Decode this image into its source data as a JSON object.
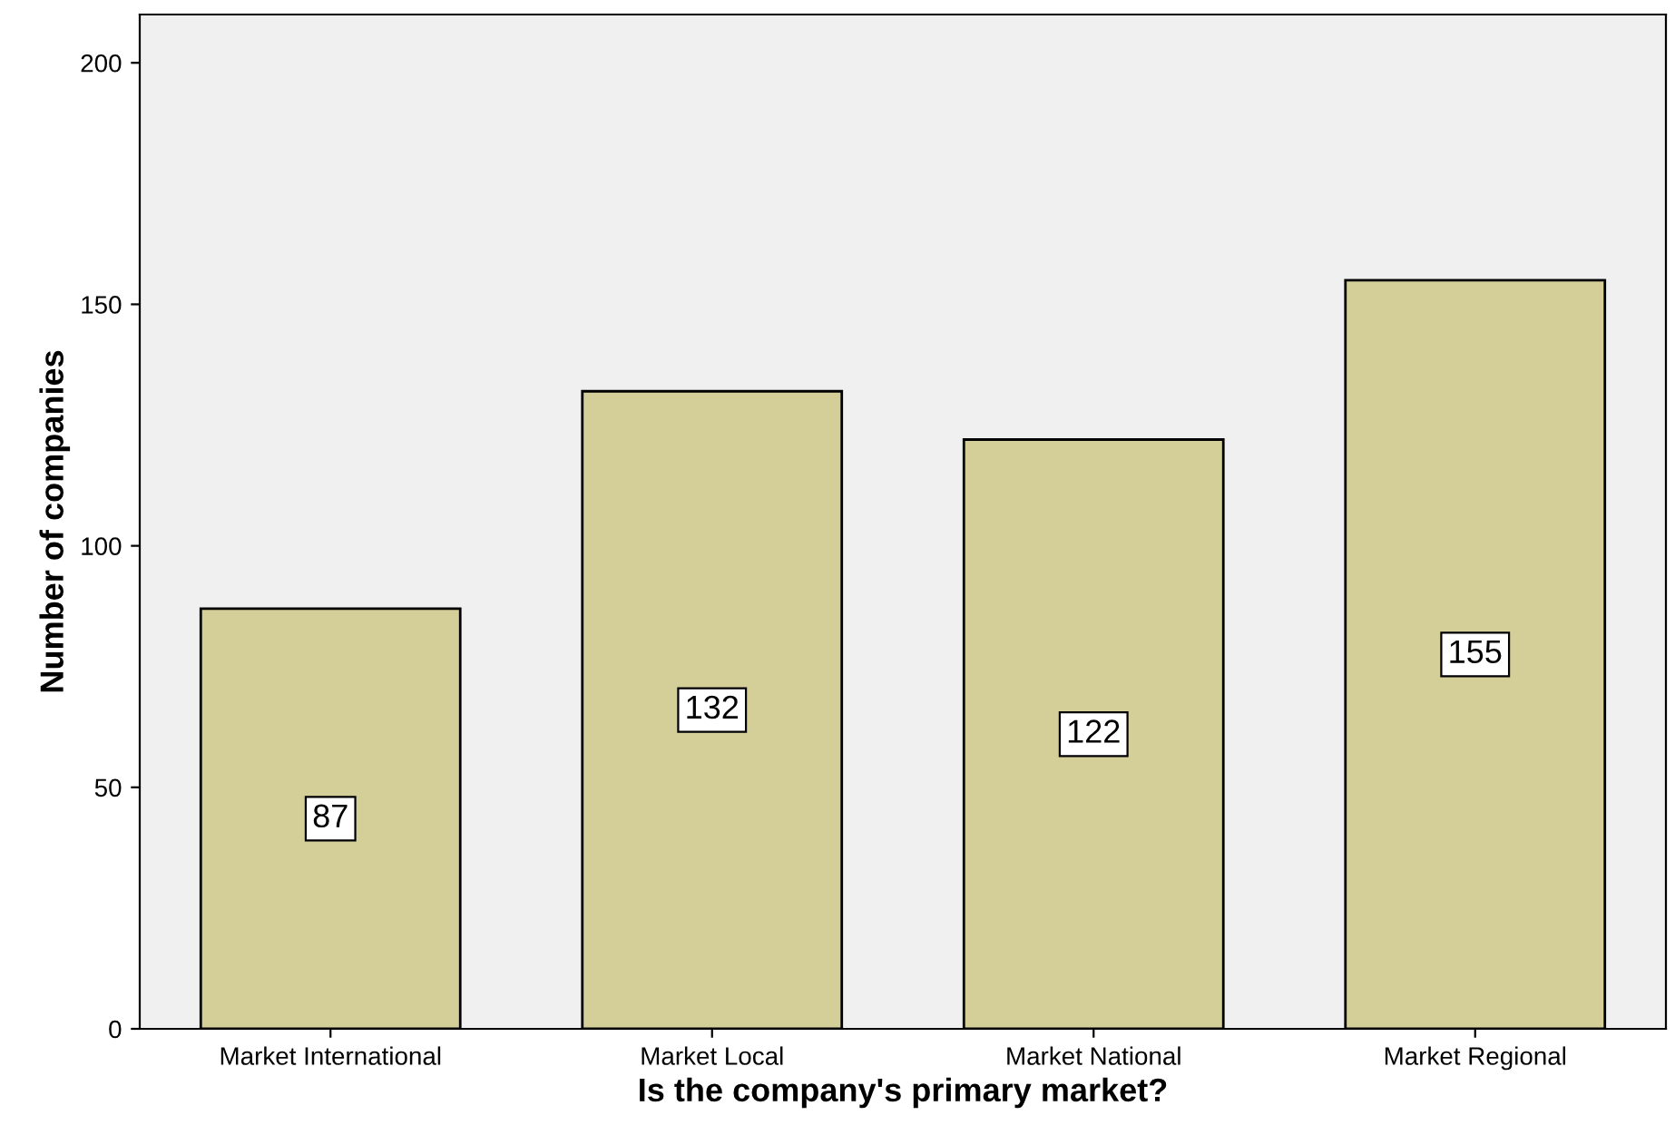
{
  "chart_data": {
    "type": "bar",
    "xlabel": "Is the company's primary market?",
    "ylabel": "Number of companies",
    "categories": [
      "Market International",
      "Market Local",
      "Market National",
      "Market Regional"
    ],
    "values": [
      87,
      132,
      122,
      155
    ],
    "color": "#d4cf98",
    "ylim": [
      0,
      210
    ],
    "yticks": [
      0,
      50,
      100,
      150,
      200
    ],
    "grid": false,
    "data_labels": true
  }
}
